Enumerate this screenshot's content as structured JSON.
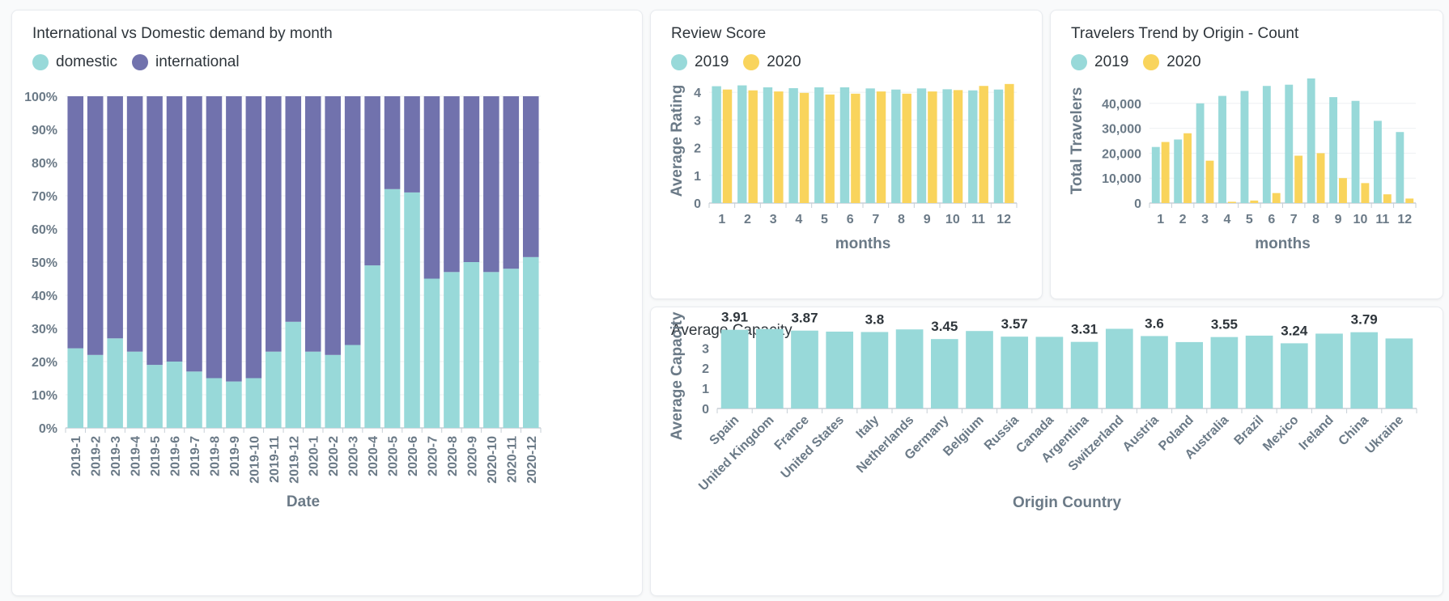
{
  "colors": {
    "domestic": "#98d9d9",
    "international": "#7172ad",
    "y2019": "#98d9d9",
    "y2020": "#f9d45c",
    "bar": "#98d9d9",
    "grid": "#eef0f2",
    "axis": "#c7cfd6"
  },
  "cards": {
    "demand": {
      "title": "International vs Domestic demand by month",
      "legend": [
        "domestic",
        "international"
      ]
    },
    "review": {
      "title": "Review Score",
      "legend": [
        "2019",
        "2020"
      ]
    },
    "travelers": {
      "title": "Travelers Trend by Origin - Count",
      "legend": [
        "2019",
        "2020"
      ]
    },
    "capacity": {
      "title": "Average Capacity"
    }
  },
  "chart_data": [
    {
      "id": "demand",
      "type": "bar",
      "stacked": "percent",
      "title": "International vs Domestic demand by month",
      "xlabel": "Date",
      "ylabel": "",
      "categories": [
        "2019-1",
        "2019-2",
        "2019-3",
        "2019-4",
        "2019-5",
        "2019-6",
        "2019-7",
        "2019-8",
        "2019-9",
        "2019-10",
        "2019-11",
        "2019-12",
        "2020-1",
        "2020-2",
        "2020-3",
        "2020-4",
        "2020-5",
        "2020-6",
        "2020-7",
        "2020-8",
        "2020-9",
        "2020-10",
        "2020-11",
        "2020-12"
      ],
      "series": [
        {
          "name": "domestic",
          "values": [
            24,
            22,
            27,
            23,
            19,
            20,
            17,
            15,
            14,
            15,
            23,
            32,
            23,
            22,
            25,
            49,
            72,
            71,
            45,
            47,
            50,
            47,
            48,
            51.5
          ]
        },
        {
          "name": "international",
          "values": [
            76,
            78,
            73,
            77,
            81,
            80,
            83,
            85,
            86,
            85,
            77,
            68,
            77,
            78,
            75,
            51,
            28,
            29,
            55,
            53,
            50,
            53,
            52,
            48.5
          ]
        }
      ],
      "yticks": [
        "0%",
        "10%",
        "20%",
        "30%",
        "40%",
        "50%",
        "60%",
        "70%",
        "80%",
        "90%",
        "100%"
      ],
      "ylim": [
        0,
        100
      ],
      "legend": "top-left"
    },
    {
      "id": "review",
      "type": "bar",
      "title": "Review Score",
      "xlabel": "months",
      "ylabel": "Average Rating",
      "categories": [
        "1",
        "2",
        "3",
        "4",
        "5",
        "6",
        "7",
        "8",
        "9",
        "10",
        "11",
        "12"
      ],
      "series": [
        {
          "name": "2019",
          "values": [
            4.22,
            4.25,
            4.18,
            4.15,
            4.18,
            4.18,
            4.14,
            4.1,
            4.14,
            4.11,
            4.07,
            4.1
          ]
        },
        {
          "name": "2020",
          "values": [
            4.1,
            4.07,
            4.03,
            3.98,
            3.92,
            3.95,
            4.03,
            3.95,
            4.03,
            4.08,
            4.23,
            4.3
          ]
        }
      ],
      "yticks": [
        "0",
        "1",
        "2",
        "3",
        "4"
      ],
      "ylim": [
        0,
        4.5
      ],
      "legend": "top-left"
    },
    {
      "id": "travelers",
      "type": "bar",
      "title": "Travelers Trend by Origin - Count",
      "xlabel": "months",
      "ylabel": "Total Travelers",
      "categories": [
        "1",
        "2",
        "3",
        "4",
        "5",
        "6",
        "7",
        "8",
        "9",
        "10",
        "11",
        "12"
      ],
      "series": [
        {
          "name": "2019",
          "values": [
            22500,
            25500,
            40000,
            43000,
            45000,
            47000,
            47500,
            50000,
            42500,
            41000,
            33000,
            28500
          ]
        },
        {
          "name": "2020",
          "values": [
            24500,
            28000,
            17000,
            500,
            1000,
            4000,
            19000,
            20000,
            10000,
            8000,
            3500,
            1800
          ]
        }
      ],
      "yticks": [
        "0",
        "10,000",
        "20,000",
        "30,000",
        "40,000"
      ],
      "ylim": [
        0,
        50000
      ],
      "legend": "top-left"
    },
    {
      "id": "capacity",
      "type": "bar",
      "title": "Average Capacity",
      "xlabel": "Origin Country",
      "ylabel": "Average Capacity",
      "categories": [
        "Spain",
        "United Kingdom",
        "France",
        "United States",
        "Italy",
        "Netherlands",
        "Germany",
        "Belgium",
        "Russia",
        "Canada",
        "Argentina",
        "Switzerland",
        "Austria",
        "Poland",
        "Australia",
        "Brazil",
        "Mexico",
        "Ireland",
        "China",
        "Ukraine"
      ],
      "values": [
        3.91,
        3.95,
        3.87,
        3.82,
        3.8,
        3.93,
        3.45,
        3.85,
        3.57,
        3.56,
        3.31,
        3.96,
        3.6,
        3.3,
        3.55,
        3.62,
        3.24,
        3.72,
        3.79,
        3.48
      ],
      "data_labels": [
        {
          "category": "Spain",
          "text": "3.91"
        },
        {
          "category": "France",
          "text": "3.87"
        },
        {
          "category": "Italy",
          "text": "3.8"
        },
        {
          "category": "Germany",
          "text": "3.45"
        },
        {
          "category": "Russia",
          "text": "3.57"
        },
        {
          "category": "Argentina",
          "text": "3.31"
        },
        {
          "category": "Austria",
          "text": "3.6"
        },
        {
          "category": "Australia",
          "text": "3.55"
        },
        {
          "category": "Mexico",
          "text": "3.24"
        },
        {
          "category": "China",
          "text": "3.79"
        }
      ],
      "yticks": [
        "0",
        "1",
        "2",
        "3"
      ],
      "ylim": [
        0,
        4.1
      ],
      "grid": false
    }
  ]
}
